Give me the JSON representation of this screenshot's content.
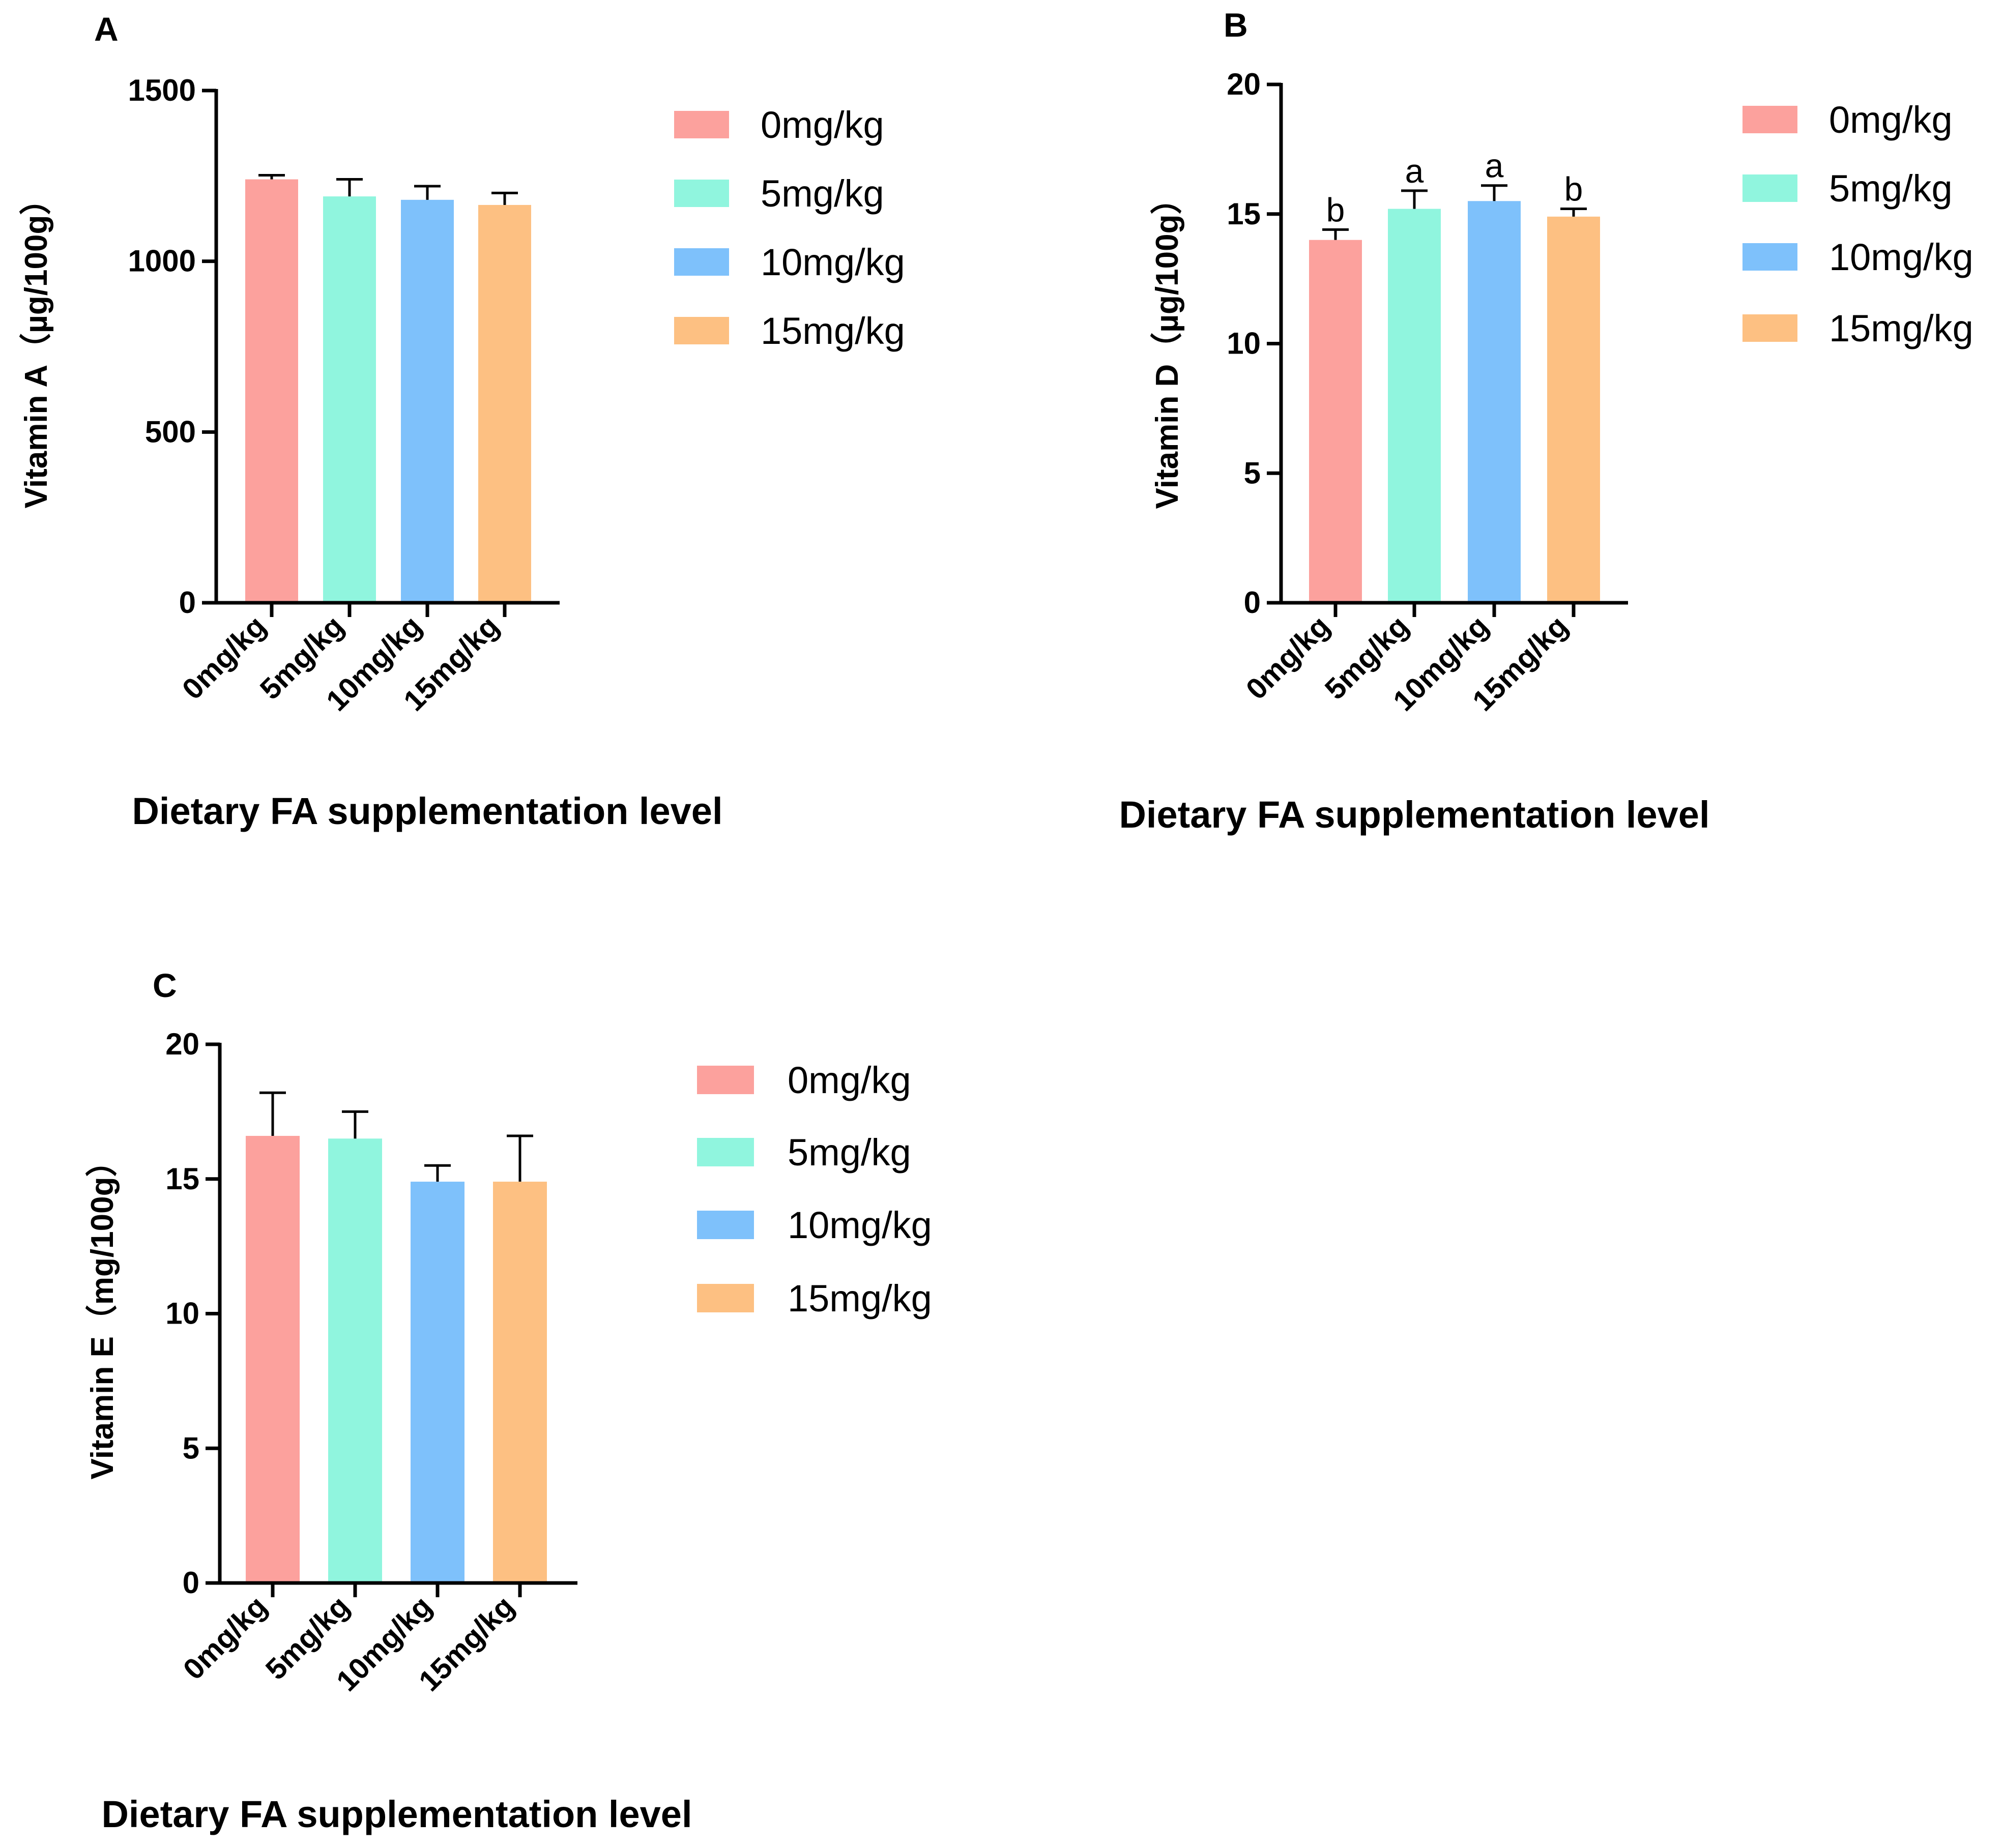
{
  "chart_data": [
    {
      "panel": "A",
      "type": "bar",
      "title": "",
      "xlabel": "Dietary FA supplementation level",
      "ylabel": "Vitamin A（µg/100g）",
      "categories": [
        "0mg/kg",
        "5mg/kg",
        "10mg/kg",
        "15mg/kg"
      ],
      "values": [
        1240,
        1190,
        1180,
        1165
      ],
      "errors": [
        12,
        50,
        40,
        35
      ],
      "significance": [],
      "ylim": [
        0,
        1500
      ],
      "yticks": [
        "0",
        "500",
        "1000",
        "1500"
      ],
      "legend": [
        "0mg/kg",
        "5mg/kg",
        "10mg/kg",
        "15mg/kg"
      ],
      "legend_position": "right",
      "grid": false
    },
    {
      "panel": "B",
      "type": "bar",
      "title": "",
      "xlabel": "Dietary FA supplementation level",
      "ylabel": "Vitamin D（µg/100g）",
      "categories": [
        "0mg/kg",
        "5mg/kg",
        "10mg/kg",
        "15mg/kg"
      ],
      "values": [
        14.0,
        15.2,
        15.5,
        14.9
      ],
      "errors": [
        0.4,
        0.7,
        0.6,
        0.3
      ],
      "significance": [
        "b",
        "a",
        "a",
        "b"
      ],
      "ylim": [
        0,
        20
      ],
      "yticks": [
        "0",
        "5",
        "10",
        "15",
        "20"
      ],
      "legend": [
        "0mg/kg",
        "5mg/kg",
        "10mg/kg",
        "15mg/kg"
      ],
      "legend_position": "right",
      "grid": false
    },
    {
      "panel": "C",
      "type": "bar",
      "title": "",
      "xlabel": "Dietary FA supplementation level",
      "ylabel": "Vitamin E（mg/100g）",
      "categories": [
        "0mg/kg",
        "5mg/kg",
        "10mg/kg",
        "15mg/kg"
      ],
      "values": [
        16.6,
        16.5,
        14.9,
        14.9
      ],
      "errors": [
        1.6,
        1.0,
        0.6,
        1.7
      ],
      "significance": [],
      "ylim": [
        0,
        20
      ],
      "yticks": [
        "0",
        "5",
        "10",
        "15",
        "20"
      ],
      "legend": [
        "0mg/kg",
        "5mg/kg",
        "10mg/kg",
        "15mg/kg"
      ],
      "legend_position": "right",
      "grid": false
    }
  ],
  "colors": [
    "#fca19d",
    "#90f5de",
    "#7ec1fb",
    "#fdc082"
  ]
}
